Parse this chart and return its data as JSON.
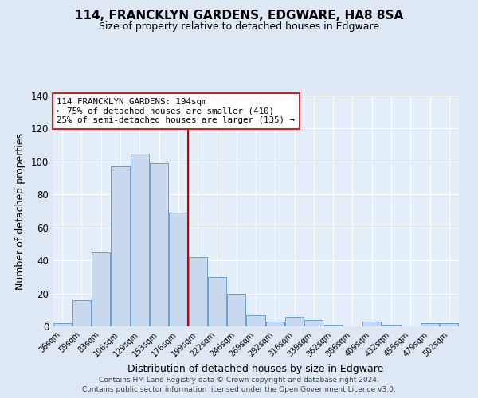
{
  "title": "114, FRANCKLYN GARDENS, EDGWARE, HA8 8SA",
  "subtitle": "Size of property relative to detached houses in Edgware",
  "xlabel": "Distribution of detached houses by size in Edgware",
  "ylabel": "Number of detached properties",
  "bar_labels": [
    "36sqm",
    "59sqm",
    "83sqm",
    "106sqm",
    "129sqm",
    "153sqm",
    "176sqm",
    "199sqm",
    "222sqm",
    "246sqm",
    "269sqm",
    "292sqm",
    "316sqm",
    "339sqm",
    "362sqm",
    "386sqm",
    "409sqm",
    "432sqm",
    "455sqm",
    "479sqm",
    "502sqm"
  ],
  "bar_values": [
    2,
    16,
    45,
    97,
    105,
    99,
    69,
    42,
    30,
    20,
    7,
    3,
    6,
    4,
    1,
    0,
    3,
    1,
    0,
    2,
    2
  ],
  "bar_color": "#c8d8ee",
  "bar_edge_color": "#6a9fd0",
  "vline_color": "#cc0000",
  "annotation_title": "114 FRANCKLYN GARDENS: 194sqm",
  "annotation_line1": "← 75% of detached houses are smaller (410)",
  "annotation_line2": "25% of semi-detached houses are larger (135) →",
  "annotation_box_facecolor": "#ffffff",
  "annotation_box_edgecolor": "#cc2222",
  "ylim": [
    0,
    140
  ],
  "yticks": [
    0,
    20,
    40,
    60,
    80,
    100,
    120,
    140
  ],
  "footer1": "Contains HM Land Registry data © Crown copyright and database right 2024.",
  "footer2": "Contains public sector information licensed under the Open Government Licence v3.0.",
  "fig_facecolor": "#dde8f4",
  "plot_facecolor": "#e4eef8"
}
